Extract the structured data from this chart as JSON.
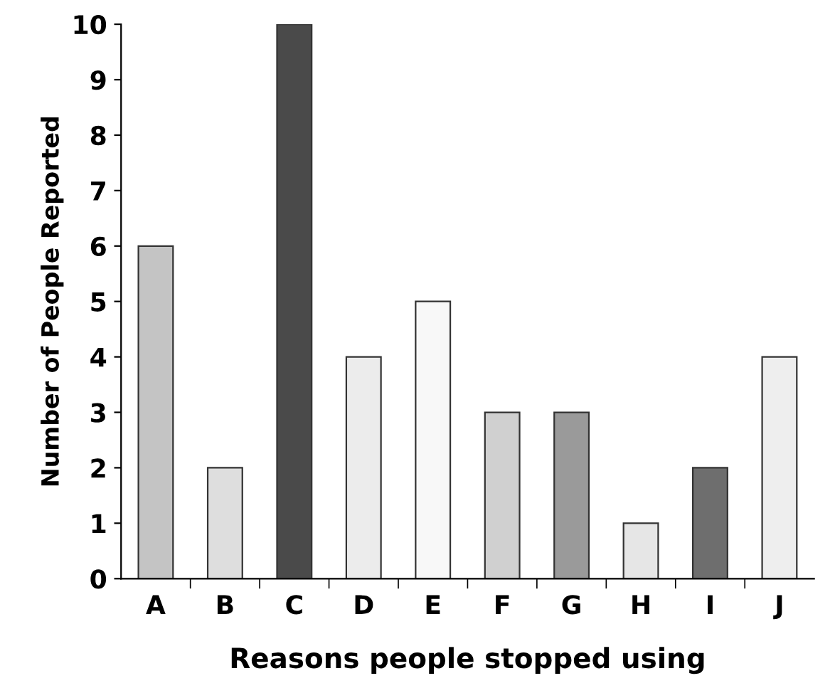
{
  "chart_data": {
    "type": "bar",
    "categories": [
      "A",
      "B",
      "C",
      "D",
      "E",
      "F",
      "G",
      "H",
      "I",
      "J"
    ],
    "values": [
      6,
      2,
      10,
      4,
      5,
      3,
      3,
      1,
      2,
      4
    ],
    "colors": [
      "#c4c4c4",
      "#dedede",
      "#4a4a4a",
      "#ececec",
      "#f8f8f8",
      "#d0d0d0",
      "#9a9a9a",
      "#e6e6e6",
      "#6e6e6e",
      "#eeeeee"
    ],
    "xlabel": "Reasons people stopped using",
    "ylabel": "Number of People Reported",
    "ylim": [
      0,
      10
    ],
    "yticks": [
      0,
      1,
      2,
      3,
      4,
      5,
      6,
      7,
      8,
      9,
      10
    ],
    "grid": false,
    "legend": false
  }
}
